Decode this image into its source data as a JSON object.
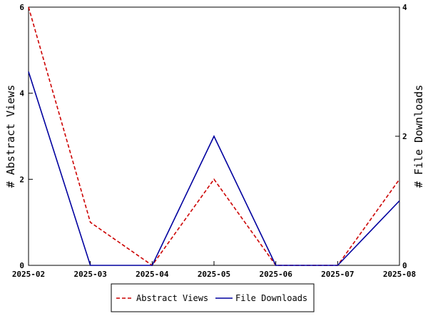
{
  "chart_data": {
    "type": "line",
    "x": [
      "2025-02",
      "2025-03",
      "2025-04",
      "2025-05",
      "2025-06",
      "2025-07",
      "2025-08"
    ],
    "y_left": {
      "label": "# Abstract Views",
      "lim": [
        0,
        6
      ],
      "ticks": [
        "0",
        "2",
        "4",
        "6"
      ]
    },
    "y_right": {
      "label": "# File Downloads",
      "lim": [
        0,
        4
      ],
      "ticks": [
        "0",
        "2",
        "4"
      ]
    },
    "series": [
      {
        "name": "Abstract Views",
        "axis": "left",
        "color": "#cc0000",
        "style": "dashed",
        "values": [
          6,
          1,
          0,
          2,
          0,
          0,
          2
        ]
      },
      {
        "name": "File Downloads",
        "axis": "right",
        "color": "#00009f",
        "style": "solid",
        "values": [
          3,
          0,
          0,
          2,
          0,
          0,
          1
        ]
      }
    ],
    "grid": false,
    "legend_position": "bottom"
  }
}
